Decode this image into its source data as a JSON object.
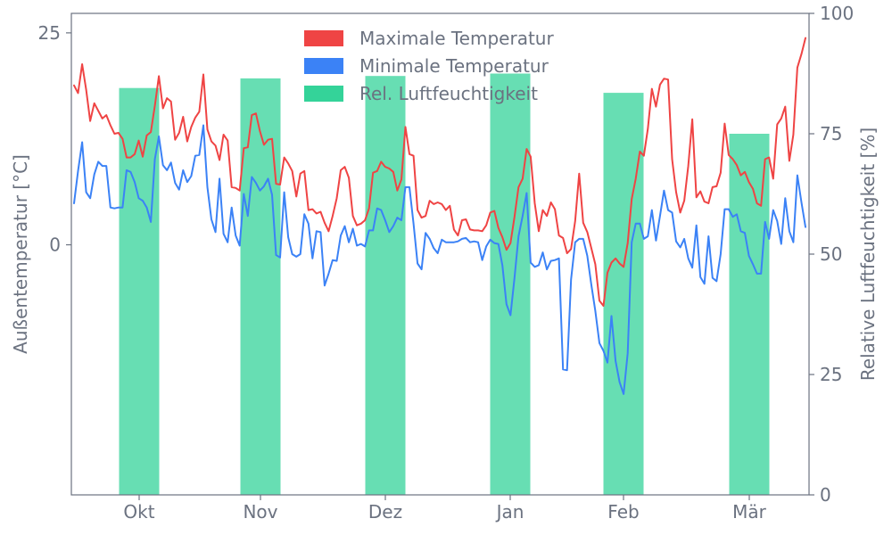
{
  "chart_data": {
    "type": "line+bar",
    "title": "",
    "xlabel": "",
    "ylabel_left": "Außentemperatur [°C]",
    "ylabel_right": "Relative Luftfeuchtigkeit [%]",
    "y_left_ticks": [
      25,
      0
    ],
    "y_left_lim": [
      -29.5,
      27.3
    ],
    "y_right_ticks": [
      0,
      25,
      50,
      75,
      100
    ],
    "y_right_lim": [
      0,
      100
    ],
    "x_ticks": [
      "Okt",
      "Nov",
      "Dez",
      "Jan",
      "Feb",
      "Mär"
    ],
    "legend_position": "top-center",
    "colors": {
      "max_temp": "#ef4444",
      "min_temp": "#3b82f6",
      "humidity": "#34d399",
      "axis": "#6b7280"
    },
    "series": [
      {
        "name": "Maximale Temperatur",
        "values": [
          18.8,
          17.9,
          21.3,
          18.3,
          14.6,
          16.7,
          15.8,
          14.9,
          15.3,
          14.1,
          13.1,
          13.2,
          12.5,
          10.3,
          10.3,
          10.7,
          12.3,
          10.4,
          12.9,
          13.3,
          16.4,
          19.9,
          16.1,
          17.3,
          16.9,
          12.4,
          13.2,
          15.1,
          12.2,
          13.9,
          15.0,
          15.7,
          20.1,
          13.6,
          12.2,
          11.7,
          10.0,
          13.0,
          12.3,
          6.8,
          6.7,
          6.4,
          11.4,
          11.5,
          15.3,
          15.5,
          13.4,
          11.8,
          12.4,
          12.5,
          7.2,
          7.1,
          10.3,
          9.6,
          8.7,
          5.7,
          8.4,
          8.7,
          4.1,
          4.2,
          3.7,
          3.9,
          2.6,
          1.6,
          3.4,
          5.5,
          8.8,
          9.2,
          7.9,
          3.4,
          2.3,
          2.5,
          2.9,
          4.3,
          8.5,
          8.7,
          9.8,
          9.2,
          9.0,
          8.6,
          6.4,
          7.7,
          13.9,
          10.7,
          10.5,
          4.1,
          3.2,
          3.4,
          5.2,
          4.8,
          5.0,
          4.8,
          4.1,
          4.6,
          1.8,
          1.1,
          2.9,
          3.0,
          1.8,
          1.7,
          1.7,
          1.6,
          2.3,
          3.8,
          4.0,
          2.0,
          0.9,
          -0.6,
          0.2,
          3.3,
          6.8,
          7.8,
          11.3,
          10.4,
          4.9,
          1.6,
          4.1,
          3.4,
          5.0,
          4.2,
          1.1,
          0.8,
          -1.0,
          -0.5,
          2.8,
          8.4,
          2.6,
          1.5,
          -0.4,
          -2.3,
          -6.6,
          -7.2,
          -3.3,
          -2.1,
          -1.6,
          -2.2,
          -2.6,
          0.2,
          5.4,
          7.8,
          11.0,
          10.5,
          13.7,
          18.4,
          16.3,
          18.9,
          19.6,
          19.5,
          10.1,
          6.2,
          3.8,
          5.2,
          9.3,
          14.8,
          5.6,
          6.3,
          5.1,
          4.9,
          6.8,
          6.9,
          8.5,
          14.3,
          10.6,
          10.1,
          9.4,
          8.2,
          8.6,
          7.4,
          6.6,
          4.9,
          4.6,
          10.1,
          10.3,
          7.8,
          14.2,
          14.9,
          16.3,
          9.9,
          13.0,
          20.9,
          22.5,
          24.4
        ]
      },
      {
        "name": "Minimale Temperatur",
        "values": [
          4.9,
          8.7,
          12.1,
          6.2,
          5.5,
          8.3,
          9.8,
          9.3,
          9.3,
          4.4,
          4.3,
          4.4,
          4.4,
          8.8,
          8.6,
          7.4,
          5.5,
          5.2,
          4.4,
          2.7,
          10.1,
          12.8,
          9.4,
          8.8,
          9.7,
          7.3,
          6.5,
          8.8,
          7.4,
          8.1,
          10.5,
          10.6,
          14.1,
          6.8,
          3.0,
          1.5,
          7.8,
          1.3,
          0.3,
          4.4,
          1.1,
          -0.1,
          6.0,
          3.4,
          8.0,
          7.3,
          6.4,
          6.9,
          7.8,
          5.9,
          -1.2,
          -1.5,
          6.2,
          0.9,
          -1.1,
          -1.4,
          -1.1,
          3.6,
          2.5,
          -1.6,
          1.6,
          1.5,
          -4.8,
          -3.4,
          -1.8,
          -1.9,
          1.1,
          2.2,
          0.3,
          1.9,
          -0.1,
          0.1,
          -0.2,
          1.7,
          1.7,
          4.3,
          4.1,
          2.9,
          1.5,
          2.2,
          3.2,
          2.9,
          6.8,
          6.8,
          2.5,
          -2.2,
          -2.9,
          1.4,
          0.7,
          -0.4,
          -1.0,
          0.6,
          0.3,
          0.3,
          0.3,
          0.4,
          0.7,
          0.8,
          0.3,
          0.4,
          0.3,
          -1.8,
          -0.2,
          0.6,
          0.2,
          0.1,
          -2.4,
          -7.0,
          -8.3,
          -3.9,
          1.0,
          3.4,
          6.1,
          -2.1,
          -2.6,
          -2.4,
          -0.9,
          -2.9,
          -1.9,
          -1.8,
          -1.6,
          -14.7,
          -14.8,
          -4.1,
          0.3,
          0.7,
          0.7,
          -1.3,
          -4.7,
          -7.8,
          -11.6,
          -12.5,
          -13.9,
          -8.4,
          -13.7,
          -16.2,
          -17.6,
          -12.8,
          0.3,
          2.5,
          2.5,
          0.7,
          1.0,
          4.1,
          0.5,
          3.4,
          6.4,
          4.1,
          3.8,
          0.4,
          -0.3,
          0.7,
          -1.6,
          -2.7,
          2.3,
          -3.8,
          -4.6,
          1.0,
          -3.9,
          -4.3,
          -1.1,
          4.2,
          4.2,
          3.3,
          3.6,
          1.6,
          1.4,
          -1.3,
          -2.3,
          -3.4,
          -3.4,
          2.7,
          0.7,
          4.1,
          2.8,
          0.1,
          5.5,
          1.6,
          0.3,
          8.2,
          5.0,
          2.1
        ]
      },
      {
        "name": "Rel. Luftfeuchtigkeit",
        "categories": [
          "Okt",
          "Nov",
          "Dez",
          "Jan",
          "Feb",
          "Mär"
        ],
        "values": [
          84.5,
          86.5,
          87.0,
          87.5,
          83.5,
          75.0
        ]
      }
    ]
  }
}
